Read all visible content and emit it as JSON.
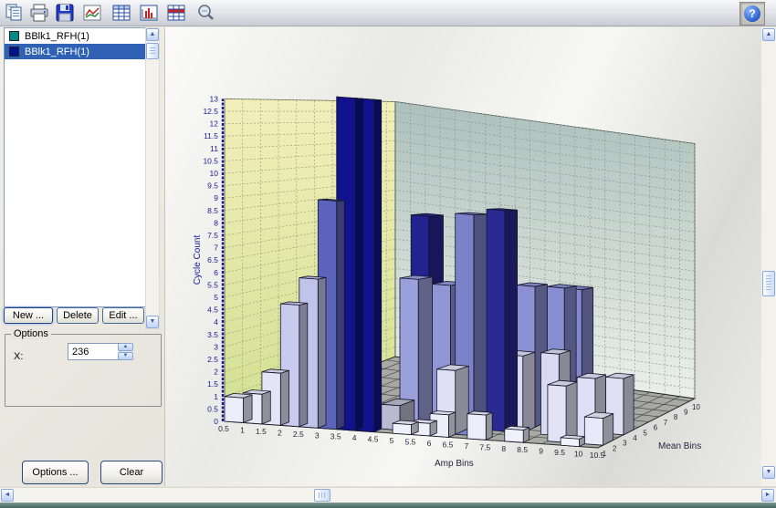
{
  "toolbar": {
    "icons": [
      "copy-icon",
      "print-icon",
      "save-icon",
      "line-chart-icon",
      "table-icon",
      "histogram-icon",
      "matrix-table-icon",
      "zoom-icon"
    ],
    "help_icon": "help-question-icon",
    "help_glyph": "?"
  },
  "sidebar": {
    "items": [
      {
        "label": "BBlk1_RFH(1)",
        "swatch": "#008a86",
        "selected": false
      },
      {
        "label": "BBlk1_RFH(1)",
        "swatch": "#00128e",
        "selected": true
      }
    ],
    "buttons": {
      "new": "New ...",
      "delete": "Delete",
      "edit": "Edit ..."
    },
    "options_group": {
      "title": "Options",
      "x_label": "X:",
      "x_value": "236"
    },
    "footer_buttons": {
      "options": "Options ...",
      "clear": "Clear"
    }
  },
  "scrollbars": {
    "up": "▲",
    "down": "▼",
    "left": "◄",
    "right": "►"
  },
  "chart_data": {
    "type": "bar",
    "subtype": "3d-histogram",
    "xlabel": "Amp Bins",
    "ylabel": "Cycle Count",
    "zlabel": "Mean Bins",
    "ylim": [
      0,
      13
    ],
    "y_ticks": [
      "0",
      "0.5",
      "1",
      "1.5",
      "2",
      "2.5",
      "3",
      "3.5",
      "4",
      "4.5",
      "5",
      "5.5",
      "6",
      "6.5",
      "7",
      "7.5",
      "8",
      "8.5",
      "9",
      "9.5",
      "10",
      "10.5",
      "11",
      "11.5",
      "12",
      "12.5",
      "13"
    ],
    "x_ticks": [
      "0.5",
      "1",
      "1.5",
      "2",
      "2.5",
      "3",
      "3.5",
      "4",
      "4.5",
      "5",
      "5.5",
      "6",
      "6.5",
      "7",
      "7.5",
      "8",
      "8.5",
      "9",
      "9.5",
      "10",
      "10.5"
    ],
    "z_ticks": [
      "1",
      "2",
      "3",
      "4",
      "5",
      "6",
      "7",
      "8",
      "9",
      "10"
    ],
    "grid": true,
    "axis_text_color": "#1a1a96",
    "tick_text_color": "#26263a",
    "wall_left_colors": [
      "#f2efbb",
      "#d2e092"
    ],
    "wall_back_colors": [
      "#adc0bc",
      "#ebf0e9"
    ],
    "floor_color": "#a8a8a4",
    "bars": [
      {
        "x": 0.5,
        "z": 1,
        "h": 1.0,
        "c": "#ececfa"
      },
      {
        "x": 1,
        "z": 1,
        "h": 1.2,
        "c": "#e9e9f8"
      },
      {
        "x": 1.5,
        "z": 1,
        "h": 2.1,
        "c": "#e4e4f6"
      },
      {
        "x": 2,
        "z": 1,
        "h": 4.9,
        "c": "#c9cbee"
      },
      {
        "x": 2.5,
        "z": 1,
        "h": 6.0,
        "c": "#c0c3ea"
      },
      {
        "x": 3,
        "z": 1,
        "h": 9.2,
        "c": "#5c63bb"
      },
      {
        "x": 3.5,
        "z": 1,
        "h": 13.4,
        "c": "#10128e"
      },
      {
        "x": 4,
        "z": 1,
        "h": 13.4,
        "c": "#10128e"
      },
      {
        "x": 5,
        "z": 1,
        "h": 0.4,
        "c": "#f1f1fc"
      },
      {
        "x": 5.5,
        "z": 1,
        "h": 0.5,
        "c": "#f0f0fc"
      },
      {
        "x": 6,
        "z": 1,
        "h": 0.9,
        "c": "#ededfa"
      },
      {
        "x": 7,
        "z": 1,
        "h": 1.0,
        "c": "#ececfa"
      },
      {
        "x": 8,
        "z": 1,
        "h": 0.5,
        "c": "#f0f0fc"
      },
      {
        "x": 9.5,
        "z": 1,
        "h": 0.3,
        "c": "#f2f2fd"
      },
      {
        "x": 4.5,
        "z": 2,
        "h": 1.0,
        "c": "#b9b9cf"
      },
      {
        "x": 5,
        "z": 2,
        "h": 6.2,
        "c": "#9aa0da"
      },
      {
        "x": 6,
        "z": 2,
        "h": 2.6,
        "c": "#e0e0f4"
      },
      {
        "x": 6.5,
        "z": 2,
        "h": 9.0,
        "c": "#7b82ca"
      },
      {
        "x": 9,
        "z": 2,
        "h": 2.3,
        "c": "#e3e3f5"
      },
      {
        "x": 10,
        "z": 2,
        "h": 1.1,
        "c": "#e9e9f8"
      },
      {
        "x": 5.5,
        "z": 3,
        "h": 5.9,
        "c": "#8f95d5"
      },
      {
        "x": 7,
        "z": 3,
        "h": 9.2,
        "c": "#2a2a92"
      },
      {
        "x": 7.5,
        "z": 3,
        "h": 3.2,
        "c": "#dbdbf2"
      },
      {
        "x": 8.5,
        "z": 3,
        "h": 3.4,
        "c": "#d9d9f1"
      },
      {
        "x": 9.5,
        "z": 3,
        "h": 2.5,
        "c": "#dedef4"
      },
      {
        "x": 4.5,
        "z": 4,
        "h": 8.6,
        "c": "#23238f"
      },
      {
        "x": 7.5,
        "z": 4,
        "h": 6.0,
        "c": "#8a90d2"
      },
      {
        "x": 10,
        "z": 4,
        "h": 2.4,
        "c": "#dfdff4"
      },
      {
        "x": 8,
        "z": 5,
        "h": 5.9,
        "c": "#868dd0"
      },
      {
        "x": 8.5,
        "z": 5,
        "h": 5.9,
        "c": "#8289cd"
      }
    ]
  }
}
